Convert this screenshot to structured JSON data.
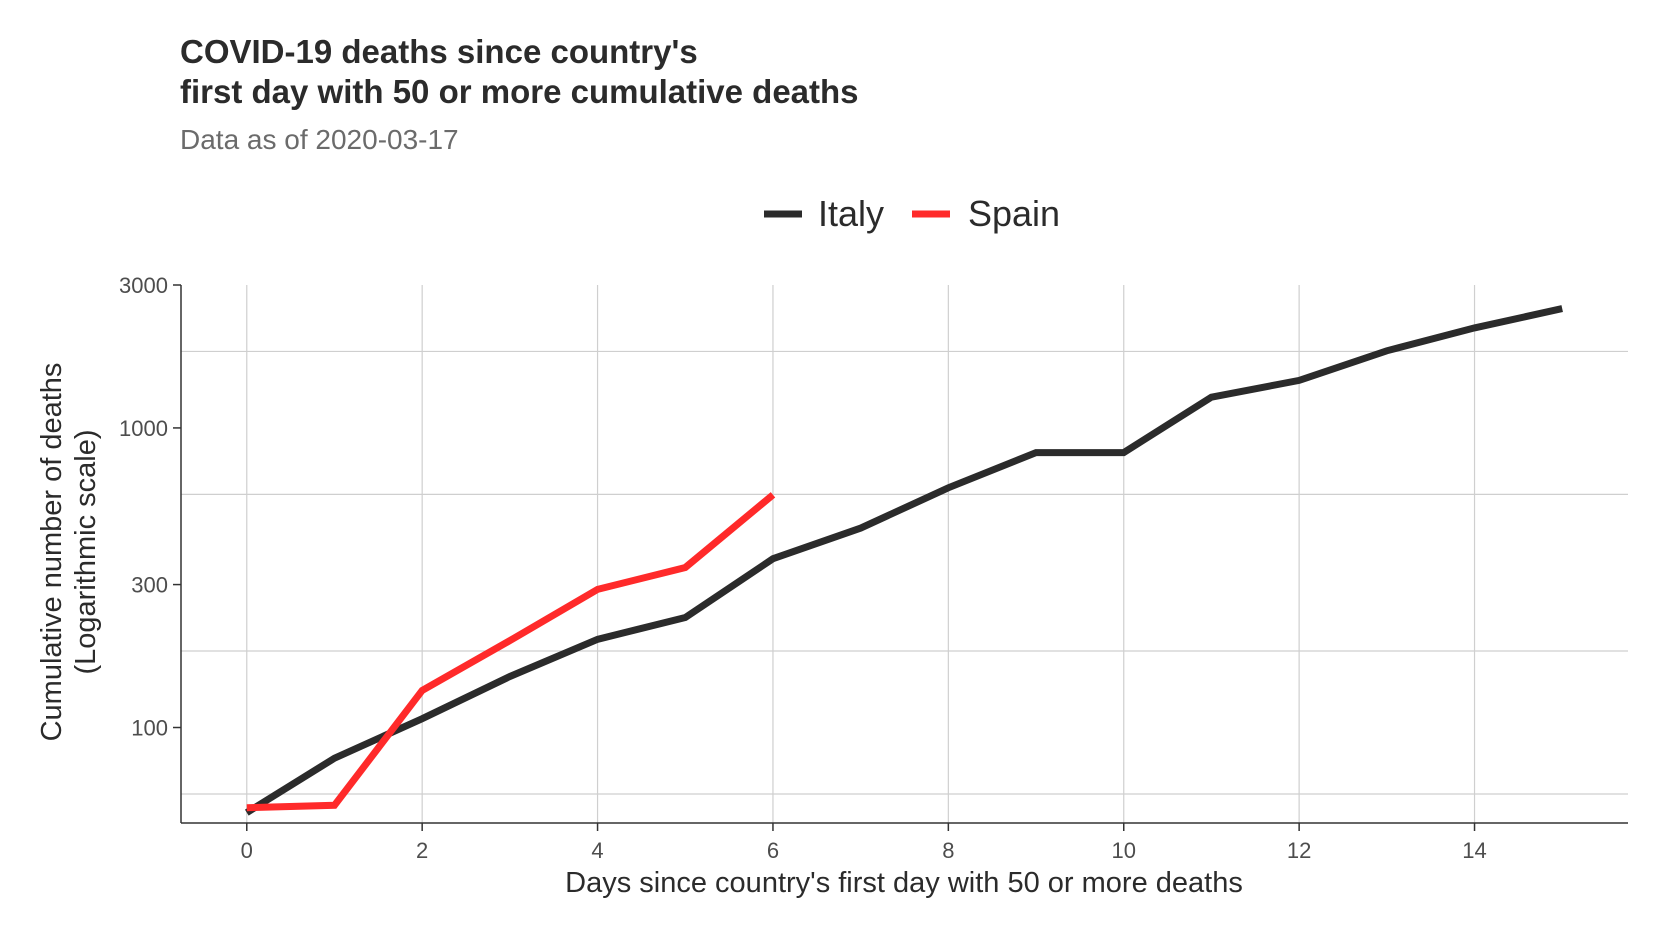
{
  "chart_data": {
    "type": "line",
    "title_lines": [
      "COVID-19 deaths since country's",
      "first day with 50 or more cumulative deaths"
    ],
    "subtitle": "Data as of 2020-03-17",
    "xlabel": "Days since country's first day with 50 or more deaths",
    "ylabel_lines": [
      "Cumulative number of deaths",
      "(Logarithmic scale)"
    ],
    "y_scale": "log10",
    "xlim": [
      -0.75,
      15.75
    ],
    "ylim": [
      48,
      3000
    ],
    "x_ticks": [
      0,
      2,
      4,
      6,
      8,
      10,
      12,
      14
    ],
    "x_tick_labels": [
      "0",
      "2",
      "4",
      "6",
      "8",
      "10",
      "12",
      "14"
    ],
    "y_ticks": [
      100,
      300,
      1000,
      3000
    ],
    "y_tick_labels": [
      "100",
      "300",
      "1000",
      "3000"
    ],
    "y_minor_gridlines": [
      60,
      180,
      600,
      1800
    ],
    "grid": true,
    "legend_position": "top",
    "series": [
      {
        "name": "Italy",
        "color": "#2b2b2b",
        "x": [
          0,
          1,
          2,
          3,
          4,
          5,
          6,
          7,
          8,
          9,
          10,
          11,
          12,
          13,
          14,
          15
        ],
        "values": [
          52,
          79,
          107,
          148,
          197,
          233,
          366,
          463,
          631,
          827,
          827,
          1266,
          1441,
          1809,
          2158,
          2503
        ]
      },
      {
        "name": "Spain",
        "color": "#ff2a2a",
        "x": [
          0,
          1,
          2,
          3,
          4,
          5,
          6
        ],
        "values": [
          54,
          55,
          133,
          195,
          289,
          342,
          598
        ]
      }
    ]
  }
}
